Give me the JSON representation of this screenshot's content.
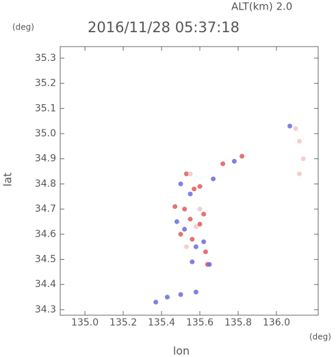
{
  "chart_data": {
    "type": "scatter",
    "altitude_label": "ALT(km) 2.0",
    "title": "2016/11/28 05:37:18",
    "y_unit": "(deg)",
    "x_unit": "(deg)",
    "y_label": "lat",
    "x_label": "lon",
    "xlim": [
      134.871,
      136.218
    ],
    "ylim": [
      34.278,
      35.346
    ],
    "xticks": [
      {
        "value": 135,
        "label": "135.0"
      },
      135.2,
      135.4,
      135.6,
      135.8,
      {
        "value": 136,
        "label": "136.0"
      }
    ],
    "yticks": [
      34.3,
      34.4,
      34.5,
      34.6,
      34.7,
      34.8,
      34.9,
      {
        "value": 35,
        "label": "35.0"
      },
      35.1,
      35.2,
      35.3
    ],
    "series": [
      {
        "color": "#e05a5a",
        "x": [
          135.53,
          135.57,
          135.6,
          135.52,
          135.55,
          135.6,
          135.62,
          135.56,
          135.63,
          135.5,
          135.72,
          135.82,
          135.47,
          135.64
        ],
        "y": [
          34.84,
          34.78,
          34.79,
          34.7,
          34.66,
          34.64,
          34.68,
          34.58,
          34.53,
          34.6,
          34.88,
          34.91,
          34.71,
          34.48
        ]
      },
      {
        "color": "#6a6ae0",
        "x": [
          135.5,
          135.55,
          135.67,
          135.52,
          135.58,
          135.56,
          135.62,
          135.48,
          135.37,
          135.43,
          135.5,
          135.58,
          135.65,
          136.07,
          135.78
        ],
        "y": [
          34.8,
          34.76,
          34.82,
          34.62,
          34.55,
          34.49,
          34.57,
          34.65,
          34.33,
          34.35,
          34.36,
          34.37,
          34.48,
          35.03,
          34.89
        ]
      },
      {
        "color": "#f4c6c6",
        "x": [
          136.1,
          136.12,
          136.14,
          136.12,
          135.58,
          135.53,
          135.6,
          135.55
        ],
        "y": [
          35.02,
          34.97,
          34.9,
          34.84,
          34.63,
          34.55,
          34.7,
          34.84
        ]
      }
    ]
  }
}
